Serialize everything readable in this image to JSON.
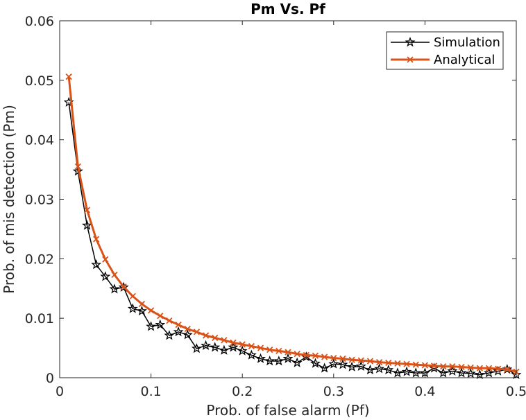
{
  "chart_data": {
    "type": "line",
    "title": "Pm Vs. Pf",
    "xlabel": "Prob. of false alarm (Pf)",
    "ylabel": "Prob. of mis detection (Pm)",
    "xlim": [
      0,
      0.5
    ],
    "ylim": [
      0,
      0.06
    ],
    "xticks": [
      "0",
      "0.1",
      "0.2",
      "0.3",
      "0.4",
      "0.5"
    ],
    "yticks": [
      "0",
      "0.01",
      "0.02",
      "0.03",
      "0.04",
      "0.05",
      "0.06"
    ],
    "grid": false,
    "legend_position": "top-right",
    "series": [
      {
        "name": "Simulation",
        "color": "#000000",
        "marker": "star",
        "x": [
          0.01,
          0.02,
          0.03,
          0.04,
          0.05,
          0.06,
          0.07,
          0.08,
          0.09,
          0.1,
          0.11,
          0.12,
          0.13,
          0.14,
          0.15,
          0.16,
          0.17,
          0.18,
          0.19,
          0.2,
          0.21,
          0.22,
          0.23,
          0.24,
          0.25,
          0.26,
          0.27,
          0.28,
          0.29,
          0.3,
          0.31,
          0.32,
          0.33,
          0.34,
          0.35,
          0.36,
          0.37,
          0.38,
          0.39,
          0.4,
          0.41,
          0.42,
          0.43,
          0.44,
          0.45,
          0.46,
          0.47,
          0.48,
          0.49,
          0.5
        ],
        "y": [
          0.0463,
          0.0347,
          0.0256,
          0.019,
          0.017,
          0.0149,
          0.0152,
          0.0116,
          0.0112,
          0.0086,
          0.0089,
          0.0071,
          0.0077,
          0.0072,
          0.0049,
          0.0054,
          0.0051,
          0.0046,
          0.0051,
          0.0045,
          0.0038,
          0.0032,
          0.0028,
          0.0028,
          0.0032,
          0.0025,
          0.0035,
          0.0024,
          0.0016,
          0.0023,
          0.0022,
          0.0018,
          0.0019,
          0.0013,
          0.0015,
          0.0013,
          0.0008,
          0.001,
          0.0008,
          0.0008,
          0.0016,
          0.0008,
          0.0011,
          0.0008,
          0.0007,
          0.0005,
          0.0008,
          0.0011,
          0.0014,
          0.0005
        ]
      },
      {
        "name": "Analytical",
        "color": "#D95319",
        "marker": "x",
        "x": [
          0.01,
          0.02,
          0.03,
          0.04,
          0.05,
          0.06,
          0.07,
          0.08,
          0.09,
          0.1,
          0.11,
          0.12,
          0.13,
          0.14,
          0.15,
          0.16,
          0.17,
          0.18,
          0.19,
          0.2,
          0.21,
          0.22,
          0.23,
          0.24,
          0.25,
          0.26,
          0.27,
          0.28,
          0.29,
          0.3,
          0.31,
          0.32,
          0.33,
          0.34,
          0.35,
          0.36,
          0.37,
          0.38,
          0.39,
          0.4,
          0.41,
          0.42,
          0.43,
          0.44,
          0.45,
          0.46,
          0.47,
          0.48,
          0.49,
          0.5
        ],
        "y": [
          0.0506,
          0.0355,
          0.0282,
          0.0233,
          0.0199,
          0.0173,
          0.0153,
          0.0137,
          0.0124,
          0.0113,
          0.0104,
          0.0096,
          0.0089,
          0.0082,
          0.0077,
          0.0071,
          0.0067,
          0.0063,
          0.0059,
          0.0056,
          0.0053,
          0.005,
          0.0047,
          0.0045,
          0.0043,
          0.004,
          0.0038,
          0.0037,
          0.0035,
          0.0033,
          0.0032,
          0.003,
          0.0029,
          0.0028,
          0.0026,
          0.0025,
          0.0024,
          0.0023,
          0.0022,
          0.0021,
          0.002,
          0.0019,
          0.0019,
          0.0018,
          0.0017,
          0.0016,
          0.0016,
          0.0015,
          0.0014,
          0.001
        ]
      }
    ]
  }
}
